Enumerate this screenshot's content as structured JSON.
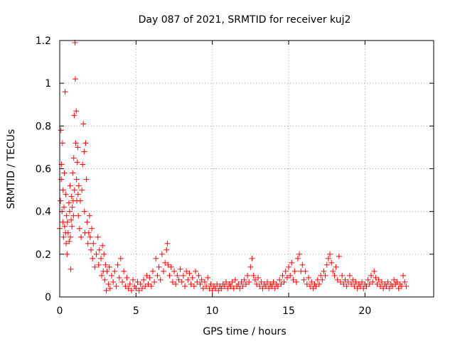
{
  "chart_data": {
    "type": "scatter",
    "title": "Day 087 of 2021, SRMTID for receiver kuj2",
    "xlabel": "GPS time / hours",
    "ylabel": "SRMTID / TECUs",
    "xlim": [
      0,
      24.5
    ],
    "ylim": [
      0,
      1.2
    ],
    "x_ticks": [
      0,
      5,
      10,
      15,
      20
    ],
    "x_tick_labels": [
      "0",
      "5",
      "10",
      "15",
      "20"
    ],
    "y_ticks": [
      0,
      0.2,
      0.4,
      0.6,
      0.8,
      1,
      1.2
    ],
    "y_tick_labels": [
      "0",
      "0.2",
      "0.4",
      "0.6",
      "0.8",
      "1",
      "1.2"
    ],
    "grid": true,
    "marker": "plus",
    "series_color": "#ff0000",
    "series": [
      {
        "name": "kuj2",
        "points": [
          [
            0.0,
            0.32
          ],
          [
            0.05,
            0.45
          ],
          [
            0.08,
            0.78
          ],
          [
            0.1,
            0.55
          ],
          [
            0.12,
            0.62
          ],
          [
            0.15,
            0.4
          ],
          [
            0.18,
            0.72
          ],
          [
            0.2,
            0.35
          ],
          [
            0.22,
            0.5
          ],
          [
            0.25,
            0.28
          ],
          [
            0.28,
            0.42
          ],
          [
            0.3,
            0.58
          ],
          [
            0.32,
            0.33
          ],
          [
            0.35,
            0.96
          ],
          [
            0.38,
            0.3
          ],
          [
            0.4,
            0.48
          ],
          [
            0.42,
            0.25
          ],
          [
            0.45,
            0.38
          ],
          [
            0.48,
            0.2
          ],
          [
            0.5,
            0.35
          ],
          [
            0.55,
            0.3
          ],
          [
            0.6,
            0.44
          ],
          [
            0.62,
            0.26
          ],
          [
            0.65,
            0.4
          ],
          [
            0.68,
            0.52
          ],
          [
            0.7,
            0.28
          ],
          [
            0.72,
            0.13
          ],
          [
            0.75,
            0.36
          ],
          [
            0.78,
            0.47
          ],
          [
            0.8,
            0.33
          ],
          [
            0.82,
            0.42
          ],
          [
            0.85,
            0.58
          ],
          [
            0.88,
            0.45
          ],
          [
            0.9,
            0.38
          ],
          [
            0.92,
            0.65
          ],
          [
            0.95,
            0.85
          ],
          [
            0.97,
            0.5
          ],
          [
            1.0,
            1.19
          ],
          [
            1.02,
            1.02
          ],
          [
            1.05,
            0.72
          ],
          [
            1.08,
            0.87
          ],
          [
            1.1,
            0.55
          ],
          [
            1.12,
            0.45
          ],
          [
            1.15,
            0.63
          ],
          [
            1.18,
            0.7
          ],
          [
            1.2,
            0.48
          ],
          [
            1.22,
            0.38
          ],
          [
            1.25,
            0.52
          ],
          [
            1.3,
            0.32
          ],
          [
            1.35,
            0.45
          ],
          [
            1.4,
            0.28
          ],
          [
            1.45,
            0.5
          ],
          [
            1.5,
            0.62
          ],
          [
            1.55,
            0.81
          ],
          [
            1.6,
            0.68
          ],
          [
            1.62,
            0.4
          ],
          [
            1.65,
            0.3
          ],
          [
            1.7,
            0.72
          ],
          [
            1.75,
            0.55
          ],
          [
            1.8,
            0.35
          ],
          [
            1.85,
            0.25
          ],
          [
            1.9,
            0.3
          ],
          [
            1.95,
            0.38
          ],
          [
            2.0,
            0.28
          ],
          [
            2.05,
            0.22
          ],
          [
            2.1,
            0.32
          ],
          [
            2.15,
            0.18
          ],
          [
            2.2,
            0.25
          ],
          [
            2.3,
            0.14
          ],
          [
            2.4,
            0.2
          ],
          [
            2.5,
            0.28
          ],
          [
            2.55,
            0.15
          ],
          [
            2.6,
            0.22
          ],
          [
            2.7,
            0.18
          ],
          [
            2.75,
            0.1
          ],
          [
            2.8,
            0.24
          ],
          [
            2.85,
            0.12
          ],
          [
            2.9,
            0.2
          ],
          [
            2.95,
            0.08
          ],
          [
            3.0,
            0.15
          ],
          [
            3.05,
            0.03
          ],
          [
            3.1,
            0.12
          ],
          [
            3.2,
            0.06
          ],
          [
            3.25,
            0.14
          ],
          [
            3.3,
            0.04
          ],
          [
            3.4,
            0.1
          ],
          [
            3.5,
            0.07
          ],
          [
            3.6,
            0.12
          ],
          [
            3.7,
            0.05
          ],
          [
            3.8,
            0.15
          ],
          [
            3.9,
            0.09
          ],
          [
            4.0,
            0.18
          ],
          [
            4.1,
            0.07
          ],
          [
            4.2,
            0.12
          ],
          [
            4.3,
            0.05
          ],
          [
            4.4,
            0.09
          ],
          [
            4.5,
            0.04
          ],
          [
            4.6,
            0.06
          ],
          [
            4.7,
            0.03
          ],
          [
            4.8,
            0.08
          ],
          [
            4.9,
            0.05
          ],
          [
            5.0,
            0.04
          ],
          [
            5.1,
            0.07
          ],
          [
            5.2,
            0.03
          ],
          [
            5.3,
            0.06
          ],
          [
            5.4,
            0.04
          ],
          [
            5.5,
            0.08
          ],
          [
            5.6,
            0.05
          ],
          [
            5.7,
            0.1
          ],
          [
            5.8,
            0.06
          ],
          [
            5.9,
            0.09
          ],
          [
            6.0,
            0.05
          ],
          [
            6.1,
            0.12
          ],
          [
            6.2,
            0.07
          ],
          [
            6.3,
            0.18
          ],
          [
            6.4,
            0.1
          ],
          [
            6.5,
            0.14
          ],
          [
            6.6,
            0.08
          ],
          [
            6.7,
            0.2
          ],
          [
            6.8,
            0.12
          ],
          [
            6.9,
            0.16
          ],
          [
            7.0,
            0.22
          ],
          [
            7.05,
            0.25
          ],
          [
            7.1,
            0.15
          ],
          [
            7.2,
            0.1
          ],
          [
            7.3,
            0.14
          ],
          [
            7.4,
            0.07
          ],
          [
            7.5,
            0.12
          ],
          [
            7.6,
            0.06
          ],
          [
            7.7,
            0.1
          ],
          [
            7.8,
            0.08
          ],
          [
            7.9,
            0.13
          ],
          [
            8.0,
            0.07
          ],
          [
            8.1,
            0.1
          ],
          [
            8.2,
            0.05
          ],
          [
            8.3,
            0.12
          ],
          [
            8.4,
            0.08
          ],
          [
            8.5,
            0.11
          ],
          [
            8.6,
            0.06
          ],
          [
            8.7,
            0.09
          ],
          [
            8.8,
            0.05
          ],
          [
            8.9,
            0.12
          ],
          [
            9.0,
            0.07
          ],
          [
            9.1,
            0.1
          ],
          [
            9.2,
            0.06
          ],
          [
            9.3,
            0.08
          ],
          [
            9.4,
            0.04
          ],
          [
            9.5,
            0.07
          ],
          [
            9.6,
            0.05
          ],
          [
            9.7,
            0.09
          ],
          [
            9.8,
            0.04
          ],
          [
            9.9,
            0.06
          ],
          [
            10.0,
            0.03
          ],
          [
            10.1,
            0.05
          ],
          [
            10.2,
            0.04
          ],
          [
            10.3,
            0.06
          ],
          [
            10.4,
            0.03
          ],
          [
            10.5,
            0.05
          ],
          [
            10.6,
            0.04
          ],
          [
            10.7,
            0.06
          ],
          [
            10.8,
            0.05
          ],
          [
            10.9,
            0.07
          ],
          [
            11.0,
            0.04
          ],
          [
            11.1,
            0.06
          ],
          [
            11.2,
            0.05
          ],
          [
            11.3,
            0.07
          ],
          [
            11.4,
            0.04
          ],
          [
            11.5,
            0.08
          ],
          [
            11.6,
            0.05
          ],
          [
            11.7,
            0.06
          ],
          [
            11.8,
            0.04
          ],
          [
            11.9,
            0.07
          ],
          [
            12.0,
            0.05
          ],
          [
            12.1,
            0.08
          ],
          [
            12.2,
            0.06
          ],
          [
            12.3,
            0.1
          ],
          [
            12.4,
            0.07
          ],
          [
            12.5,
            0.14
          ],
          [
            12.6,
            0.18
          ],
          [
            12.7,
            0.1
          ],
          [
            12.8,
            0.08
          ],
          [
            12.9,
            0.06
          ],
          [
            13.0,
            0.09
          ],
          [
            13.1,
            0.05
          ],
          [
            13.2,
            0.07
          ],
          [
            13.3,
            0.04
          ],
          [
            13.4,
            0.06
          ],
          [
            13.5,
            0.05
          ],
          [
            13.6,
            0.07
          ],
          [
            13.7,
            0.04
          ],
          [
            13.8,
            0.06
          ],
          [
            13.9,
            0.05
          ],
          [
            14.0,
            0.07
          ],
          [
            14.1,
            0.04
          ],
          [
            14.2,
            0.06
          ],
          [
            14.3,
            0.05
          ],
          [
            14.4,
            0.08
          ],
          [
            14.5,
            0.06
          ],
          [
            14.6,
            0.1
          ],
          [
            14.7,
            0.07
          ],
          [
            14.8,
            0.12
          ],
          [
            14.9,
            0.09
          ],
          [
            15.0,
            0.14
          ],
          [
            15.1,
            0.1
          ],
          [
            15.2,
            0.16
          ],
          [
            15.3,
            0.08
          ],
          [
            15.4,
            0.12
          ],
          [
            15.5,
            0.07
          ],
          [
            15.6,
            0.18
          ],
          [
            15.7,
            0.2
          ],
          [
            15.8,
            0.12
          ],
          [
            15.9,
            0.15
          ],
          [
            16.0,
            0.08
          ],
          [
            16.1,
            0.12
          ],
          [
            16.2,
            0.06
          ],
          [
            16.3,
            0.09
          ],
          [
            16.4,
            0.05
          ],
          [
            16.5,
            0.07
          ],
          [
            16.6,
            0.04
          ],
          [
            16.7,
            0.06
          ],
          [
            16.8,
            0.05
          ],
          [
            16.9,
            0.08
          ],
          [
            17.0,
            0.06
          ],
          [
            17.1,
            0.1
          ],
          [
            17.2,
            0.08
          ],
          [
            17.3,
            0.12
          ],
          [
            17.4,
            0.1
          ],
          [
            17.5,
            0.15
          ],
          [
            17.6,
            0.18
          ],
          [
            17.7,
            0.2
          ],
          [
            17.8,
            0.16
          ],
          [
            17.9,
            0.12
          ],
          [
            18.0,
            0.1
          ],
          [
            18.1,
            0.14
          ],
          [
            18.2,
            0.08
          ],
          [
            18.3,
            0.19
          ],
          [
            18.4,
            0.07
          ],
          [
            18.5,
            0.1
          ],
          [
            18.6,
            0.06
          ],
          [
            18.7,
            0.08
          ],
          [
            18.8,
            0.05
          ],
          [
            18.9,
            0.07
          ],
          [
            19.0,
            0.1
          ],
          [
            19.1,
            0.06
          ],
          [
            19.2,
            0.08
          ],
          [
            19.3,
            0.05
          ],
          [
            19.4,
            0.07
          ],
          [
            19.5,
            0.04
          ],
          [
            19.6,
            0.06
          ],
          [
            19.7,
            0.05
          ],
          [
            19.8,
            0.07
          ],
          [
            19.9,
            0.04
          ],
          [
            20.0,
            0.06
          ],
          [
            20.1,
            0.05
          ],
          [
            20.2,
            0.08
          ],
          [
            20.3,
            0.06
          ],
          [
            20.4,
            0.1
          ],
          [
            20.5,
            0.07
          ],
          [
            20.6,
            0.12
          ],
          [
            20.7,
            0.09
          ],
          [
            20.8,
            0.06
          ],
          [
            20.9,
            0.08
          ],
          [
            21.0,
            0.05
          ],
          [
            21.1,
            0.07
          ],
          [
            21.2,
            0.04
          ],
          [
            21.3,
            0.06
          ],
          [
            21.4,
            0.05
          ],
          [
            21.5,
            0.07
          ],
          [
            21.6,
            0.04
          ],
          [
            21.7,
            0.06
          ],
          [
            21.8,
            0.05
          ],
          [
            21.9,
            0.08
          ],
          [
            22.0,
            0.06
          ],
          [
            22.1,
            0.07
          ],
          [
            22.2,
            0.04
          ],
          [
            22.3,
            0.06
          ],
          [
            22.4,
            0.05
          ],
          [
            22.5,
            0.1
          ],
          [
            22.6,
            0.07
          ],
          [
            22.7,
            0.05
          ]
        ]
      }
    ]
  }
}
